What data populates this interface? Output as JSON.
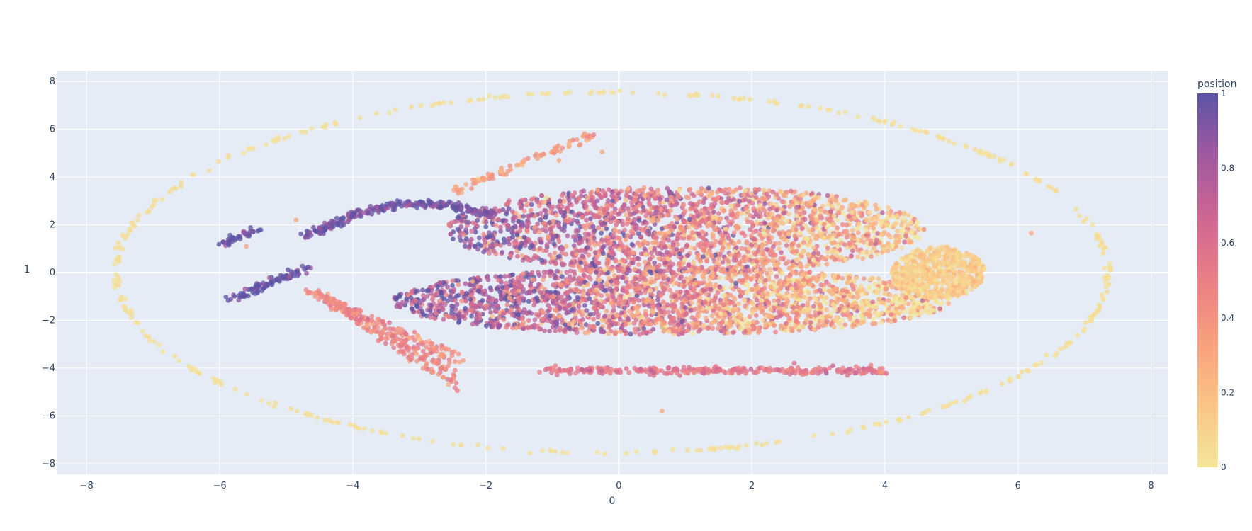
{
  "chart_data": {
    "type": "scatter",
    "xlabel": "0",
    "ylabel": "1",
    "xlim": [
      -8.45,
      8.25
    ],
    "ylim": [
      -8.45,
      8.45
    ],
    "xticks": [
      -8,
      -6,
      -4,
      -2,
      0,
      2,
      4,
      6,
      8
    ],
    "yticks": [
      -8,
      -6,
      -4,
      -2,
      0,
      2,
      4,
      6,
      8
    ],
    "xtick_labels": [
      "−8",
      "−6",
      "−4",
      "−2",
      "0",
      "2",
      "4",
      "6",
      "8"
    ],
    "ytick_labels": [
      "−8",
      "−6",
      "−4",
      "−2",
      "0",
      "2",
      "4",
      "6",
      "8"
    ],
    "grid": true,
    "legend": "none",
    "colorbar": {
      "title": "position",
      "range": [
        0,
        1
      ],
      "ticks": [
        0,
        0.2,
        0.4,
        0.6,
        0.8,
        1
      ],
      "tick_labels": [
        "0",
        "0.2",
        "0.4",
        "0.6",
        "0.8",
        "1"
      ],
      "colorscale": [
        "#f3e79b",
        "#fac484",
        "#f8a07e",
        "#eb7f86",
        "#ce6693",
        "#a059a0",
        "#5c53a5"
      ]
    },
    "colors": {
      "plot_bg": "#e5ecf6",
      "grid": "#ffffff",
      "text": "#2a3f5f"
    },
    "structures": [
      {
        "name": "outer-ellipse",
        "center": [
          -0.1,
          0
        ],
        "semi_axes": [
          7.45,
          7.55
        ],
        "position": 0.02,
        "count": 520
      },
      {
        "name": "upper-lobe",
        "center": [
          1.0,
          1.8
        ],
        "semi_axes": [
          3.6,
          1.8
        ],
        "position_gradient": [
          0.85,
          0.15
        ],
        "count": 2200
      },
      {
        "name": "lower-lobe",
        "center": [
          0.8,
          -1.2
        ],
        "semi_axes": [
          4.2,
          1.4
        ],
        "position_gradient": [
          0.9,
          0.05
        ],
        "count": 2400
      },
      {
        "name": "right-core",
        "center": [
          4.8,
          0.0
        ],
        "semi_axes": [
          0.7,
          1.1
        ],
        "position": 0.12,
        "count": 600
      },
      {
        "name": "left-arc",
        "from": [
          -4.7,
          2.0
        ],
        "to": [
          -1.9,
          2.9
        ],
        "position": 0.95,
        "count": 260
      },
      {
        "name": "left-tail",
        "from": [
          -5.85,
          -1.15
        ],
        "to": [
          -4.7,
          0.2
        ],
        "position": 1.0,
        "count": 90
      },
      {
        "name": "left-stub",
        "from": [
          -5.95,
          1.2
        ],
        "to": [
          -5.45,
          1.8
        ],
        "position": 1.0,
        "count": 40
      },
      {
        "name": "upper-strand",
        "from": [
          -2.5,
          3.4
        ],
        "to": [
          -0.4,
          5.75
        ],
        "position": 0.35,
        "count": 90
      },
      {
        "name": "bottom-strand",
        "from": [
          -1.2,
          -4.1
        ],
        "to": [
          4.0,
          -4.1
        ],
        "position": 0.55,
        "count": 300
      },
      {
        "name": "lower-left-fans",
        "from": [
          -4.6,
          -0.8
        ],
        "to": [
          -2.4,
          -4.2
        ],
        "position": 0.45,
        "count": 320
      },
      {
        "name": "outliers",
        "points": [
          [
            6.2,
            1.65
          ],
          [
            0.65,
            -5.8
          ],
          [
            -0.25,
            5.05
          ],
          [
            -0.9,
            4.7
          ],
          [
            -5.6,
            1.1
          ],
          [
            -4.85,
            2.2
          ]
        ]
      }
    ]
  }
}
